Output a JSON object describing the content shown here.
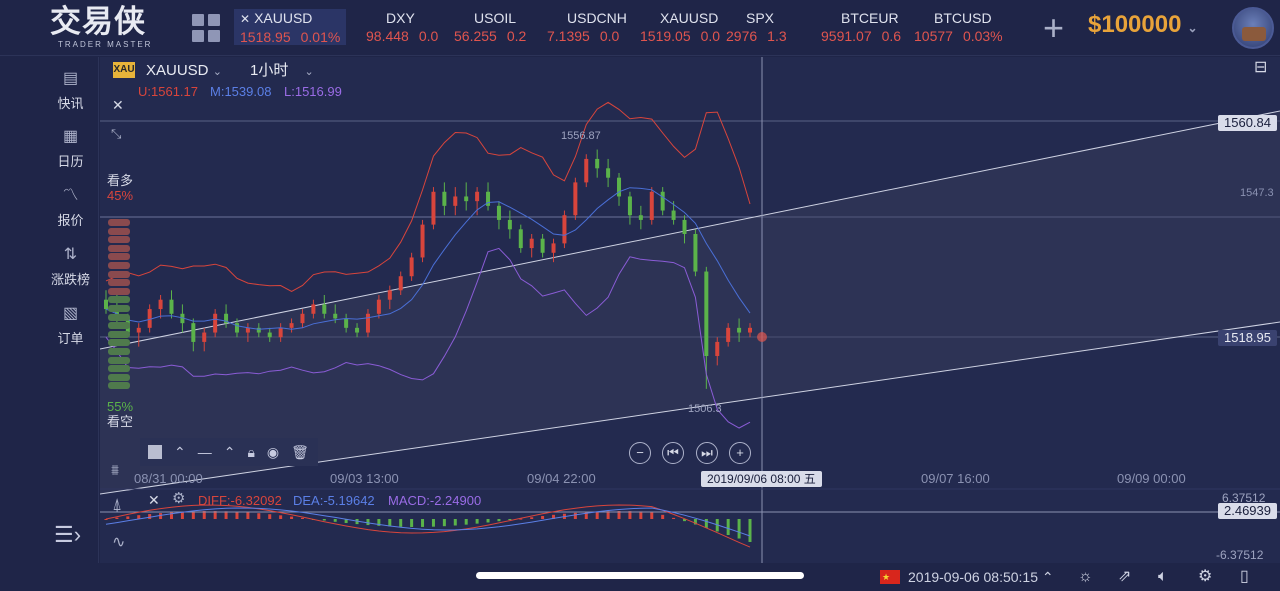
{
  "app": {
    "logo_cn": "交易侠",
    "logo_en": "TRADER MASTER",
    "balance": "$100000"
  },
  "tickers": [
    {
      "name": "XAUUSD",
      "price": "1518.95",
      "change": "0.01%",
      "active": true,
      "closable": true
    },
    {
      "name": "DXY",
      "price": "98.448",
      "change": "0.0"
    },
    {
      "name": "USOIL",
      "price": "56.255",
      "change": "0.2"
    },
    {
      "name": "USDCNH",
      "price": "7.1395",
      "change": "0.0"
    },
    {
      "name": "XAUUSD",
      "price": "1519.05",
      "change": "0.0"
    },
    {
      "name": "SPX",
      "price": "2976",
      "change": "1.3"
    },
    {
      "name": "BTCEUR",
      "price": "9591.07",
      "change": "0.6"
    },
    {
      "name": "BTCUSD",
      "price": "10577",
      "change": "0.03%"
    }
  ],
  "sidebar": {
    "items": [
      {
        "label": "快讯",
        "icon": "news-icon"
      },
      {
        "label": "日历",
        "icon": "calendar-icon"
      },
      {
        "label": "报价",
        "icon": "quote-chart-icon"
      },
      {
        "label": "涨跌榜",
        "icon": "sort-arrows-icon"
      },
      {
        "label": "订单",
        "icon": "order-icon"
      }
    ]
  },
  "chart_header": {
    "symbol": "XAUUSD",
    "symbol_badge": "XAU",
    "timeframe": "1小时",
    "boll_u": "U:1561.17",
    "boll_m": "M:1539.08",
    "boll_l": "L:1516.99"
  },
  "sentiment": {
    "bull_label": "看多",
    "bull_pct": "45%",
    "bear_pct": "55%",
    "bear_label": "看空"
  },
  "price_labels": {
    "high": "1556.87",
    "low": "1506.3",
    "right_upper": "1560.84",
    "right_mid": "1547.3",
    "right_current": "1518.95"
  },
  "x_axis": [
    "08/31 00:00",
    "09/03 13:00",
    "09/04 22:00",
    "09/07 16:00",
    "09/09 00:00"
  ],
  "crosshair_time": "2019/09/06 08:00 五",
  "macd": {
    "diff": "DIFF:-6.32092",
    "dea": "DEA:-5.19642",
    "macd": "MACD:-2.24900",
    "axis_top": "6.37512",
    "axis_mid": "2.46939",
    "axis_bottom": "-6.37512"
  },
  "status_bar": {
    "datetime": "2019-09-06 08:50:15"
  },
  "colors": {
    "up": "#d8453c",
    "down": "#5bb34a",
    "boll_u": "#d8453c",
    "boll_m": "#4a6fd6",
    "boll_l": "#8a5cd6",
    "accent": "#e8a33a"
  },
  "candles": [
    [
      1525,
      1527,
      1522,
      1523
    ],
    [
      1523,
      1526,
      1520,
      1521
    ],
    [
      1521,
      1522,
      1517,
      1518
    ],
    [
      1518,
      1520,
      1515,
      1519
    ],
    [
      1519,
      1524,
      1518,
      1523
    ],
    [
      1523,
      1526,
      1521,
      1525
    ],
    [
      1525,
      1527,
      1521,
      1522
    ],
    [
      1522,
      1524,
      1518,
      1520
    ],
    [
      1520,
      1521,
      1514,
      1516
    ],
    [
      1516,
      1519,
      1514,
      1518
    ],
    [
      1518,
      1523,
      1517,
      1522
    ],
    [
      1522,
      1524,
      1519,
      1520
    ],
    [
      1520,
      1521,
      1517,
      1518
    ],
    [
      1518,
      1520,
      1516,
      1519
    ],
    [
      1519,
      1520,
      1517,
      1518
    ],
    [
      1518,
      1519,
      1516,
      1517
    ],
    [
      1517,
      1520,
      1516,
      1519
    ],
    [
      1519,
      1521,
      1518,
      1520
    ],
    [
      1520,
      1523,
      1519,
      1522
    ],
    [
      1522,
      1525,
      1521,
      1524
    ],
    [
      1524,
      1526,
      1521,
      1522
    ],
    [
      1522,
      1524,
      1520,
      1521
    ],
    [
      1521,
      1522,
      1518,
      1519
    ],
    [
      1519,
      1520,
      1517,
      1518
    ],
    [
      1518,
      1523,
      1517,
      1522
    ],
    [
      1522,
      1526,
      1521,
      1525
    ],
    [
      1525,
      1528,
      1523,
      1527
    ],
    [
      1527,
      1531,
      1526,
      1530
    ],
    [
      1530,
      1535,
      1529,
      1534
    ],
    [
      1534,
      1542,
      1533,
      1541
    ],
    [
      1541,
      1549,
      1540,
      1548
    ],
    [
      1548,
      1550,
      1543,
      1545
    ],
    [
      1545,
      1549,
      1543,
      1547
    ],
    [
      1547,
      1550,
      1544,
      1546
    ],
    [
      1546,
      1549,
      1543,
      1548
    ],
    [
      1548,
      1550,
      1544,
      1545
    ],
    [
      1545,
      1546,
      1540,
      1542
    ],
    [
      1542,
      1544,
      1538,
      1540
    ],
    [
      1540,
      1541,
      1535,
      1536
    ],
    [
      1536,
      1539,
      1534,
      1538
    ],
    [
      1538,
      1539,
      1534,
      1535
    ],
    [
      1535,
      1538,
      1533,
      1537
    ],
    [
      1537,
      1544,
      1536,
      1543
    ],
    [
      1543,
      1551,
      1542,
      1550
    ],
    [
      1550,
      1556,
      1549,
      1555
    ],
    [
      1555,
      1557,
      1551,
      1553
    ],
    [
      1553,
      1555,
      1549,
      1551
    ],
    [
      1551,
      1552,
      1545,
      1547
    ],
    [
      1547,
      1548,
      1541,
      1543
    ],
    [
      1543,
      1545,
      1540,
      1542
    ],
    [
      1542,
      1549,
      1541,
      1548
    ],
    [
      1548,
      1549,
      1543,
      1544
    ],
    [
      1544,
      1546,
      1541,
      1542
    ],
    [
      1542,
      1543,
      1537,
      1539
    ],
    [
      1539,
      1540,
      1530,
      1531
    ],
    [
      1531,
      1532,
      1506,
      1513
    ],
    [
      1513,
      1517,
      1511,
      1516
    ],
    [
      1516,
      1520,
      1515,
      1519
    ],
    [
      1519,
      1521,
      1516,
      1518
    ],
    [
      1518,
      1520,
      1517,
      1519
    ]
  ]
}
